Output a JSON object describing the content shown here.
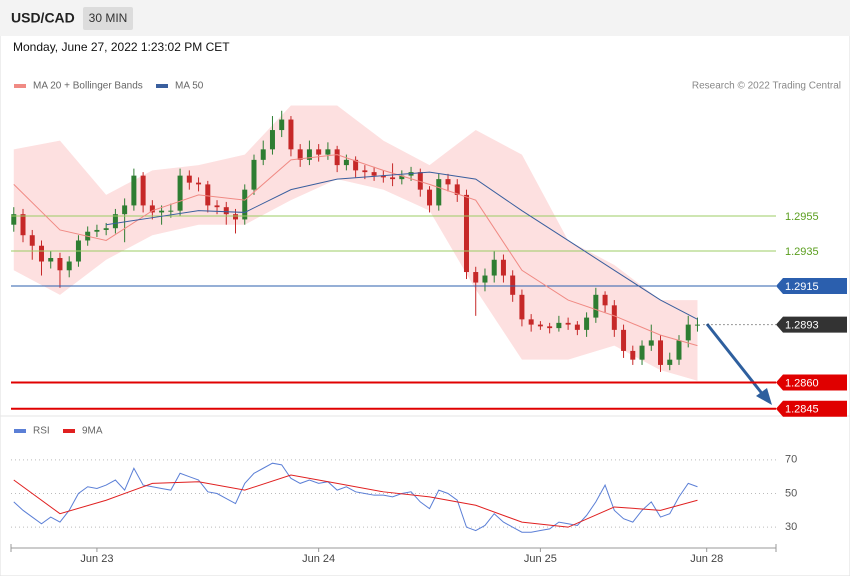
{
  "header": {
    "symbol": "USD/CAD",
    "timeframe": "30 MIN",
    "timestamp": "Monday, June 27, 2022 1:23:02 PM CET",
    "credit": "Research © 2022 Trading Central"
  },
  "chart_data": [
    {
      "type": "candlestick",
      "up_color": "#2e7d32",
      "down_color": "#c62828",
      "x": [
        0,
        1,
        2,
        3,
        4,
        5,
        6,
        7,
        8,
        9,
        10,
        11,
        12,
        13,
        14,
        15,
        16,
        17,
        18,
        19,
        20,
        21,
        22,
        23,
        24,
        25,
        26,
        27,
        28,
        29,
        30,
        31,
        32,
        33,
        34,
        35,
        36,
        37,
        38,
        39,
        40,
        41,
        42,
        43,
        44,
        45,
        46,
        47,
        48,
        49,
        50,
        51,
        52,
        53,
        54,
        55,
        56,
        57,
        58,
        59,
        60,
        61,
        62,
        63,
        64,
        65,
        66,
        67,
        68,
        69,
        70,
        71,
        72,
        73,
        74
      ],
      "open": [
        1.295,
        1.2956,
        1.2944,
        1.2938,
        1.2929,
        1.2931,
        1.2924,
        1.2929,
        1.2941,
        1.2946,
        1.2947,
        1.2948,
        1.2956,
        1.2961,
        1.2978,
        1.2961,
        1.2957,
        1.2958,
        1.2958,
        1.2978,
        1.2974,
        1.2973,
        1.2961,
        1.296,
        1.2956,
        1.2953,
        1.297,
        1.2987,
        1.2993,
        1.3004,
        1.301,
        1.2993,
        1.2987,
        1.2993,
        1.299,
        1.2993,
        1.2984,
        1.2987,
        1.2981,
        1.298,
        1.2978,
        1.2977,
        1.2976,
        1.2978,
        1.298,
        1.297,
        1.2961,
        1.2976,
        1.2973,
        1.2967,
        1.2923,
        1.2917,
        1.2921,
        1.293,
        1.2921,
        1.291,
        1.2896,
        1.2893,
        1.2892,
        1.2891,
        1.2894,
        1.2893,
        1.289,
        1.2897,
        1.291,
        1.2904,
        1.289,
        1.2878,
        1.2873,
        1.2881,
        1.2884,
        1.287,
        1.2873,
        1.2884,
        1.2893
      ],
      "high": [
        1.296,
        1.2959,
        1.2947,
        1.2941,
        1.2935,
        1.2934,
        1.2932,
        1.2944,
        1.2949,
        1.295,
        1.2951,
        1.2959,
        1.2965,
        1.2982,
        1.298,
        1.2964,
        1.2961,
        1.2962,
        1.2982,
        1.2981,
        1.2977,
        1.2975,
        1.2964,
        1.2963,
        1.2959,
        1.2973,
        1.299,
        1.2998,
        1.3012,
        1.3015,
        1.3012,
        1.2996,
        1.2998,
        1.2996,
        1.2997,
        1.2995,
        1.299,
        1.2989,
        1.2984,
        1.2983,
        1.2981,
        1.2985,
        1.2981,
        1.2983,
        1.2982,
        1.2972,
        1.2979,
        1.2979,
        1.2976,
        1.297,
        1.2926,
        1.2925,
        1.2935,
        1.2933,
        1.2924,
        1.2913,
        1.2899,
        1.2895,
        1.2894,
        1.2898,
        1.2897,
        1.2895,
        1.29,
        1.2914,
        1.2912,
        1.2907,
        1.2893,
        1.2881,
        1.2884,
        1.2893,
        1.2887,
        1.2877,
        1.2887,
        1.2898,
        1.2897
      ],
      "low": [
        1.2946,
        1.294,
        1.293,
        1.2921,
        1.2925,
        1.2914,
        1.292,
        1.2926,
        1.2938,
        1.2943,
        1.2944,
        1.2945,
        1.294,
        1.2958,
        1.2957,
        1.2953,
        1.295,
        1.2954,
        1.2955,
        1.297,
        1.2969,
        1.2957,
        1.2956,
        1.295,
        1.2945,
        1.295,
        1.2967,
        1.2984,
        1.299,
        1.3,
        1.2989,
        1.2983,
        1.2984,
        1.2986,
        1.2987,
        1.298,
        1.2981,
        1.2977,
        1.2976,
        1.2975,
        1.2974,
        1.2972,
        1.2973,
        1.2975,
        1.2966,
        1.2957,
        1.2958,
        1.2969,
        1.2963,
        1.2919,
        1.2898,
        1.2912,
        1.2917,
        1.2917,
        1.2906,
        1.2892,
        1.2889,
        1.289,
        1.2888,
        1.2889,
        1.289,
        1.2887,
        1.2886,
        1.2894,
        1.29,
        1.2886,
        1.2874,
        1.287,
        1.287,
        1.2878,
        1.2866,
        1.2867,
        1.287,
        1.288,
        1.2889
      ],
      "close": [
        1.2956,
        1.2944,
        1.2938,
        1.2929,
        1.2931,
        1.2924,
        1.2929,
        1.2941,
        1.2946,
        1.2947,
        1.2948,
        1.2956,
        1.2961,
        1.2978,
        1.2961,
        1.2957,
        1.2958,
        1.2958,
        1.2978,
        1.2974,
        1.2973,
        1.2961,
        1.296,
        1.2956,
        1.2953,
        1.297,
        1.2987,
        1.2993,
        1.3004,
        1.301,
        1.2993,
        1.2987,
        1.2993,
        1.299,
        1.2993,
        1.2984,
        1.2987,
        1.2981,
        1.298,
        1.2978,
        1.2977,
        1.2976,
        1.2978,
        1.298,
        1.297,
        1.2961,
        1.2976,
        1.2973,
        1.2967,
        1.2923,
        1.2917,
        1.2921,
        1.293,
        1.2921,
        1.291,
        1.2896,
        1.2893,
        1.2892,
        1.2891,
        1.2894,
        1.2893,
        1.289,
        1.2897,
        1.291,
        1.2904,
        1.289,
        1.2878,
        1.2873,
        1.2881,
        1.2884,
        1.287,
        1.2873,
        1.2884,
        1.2893,
        1.2893
      ],
      "series": [
        {
          "name": "MA 20 + Bollinger Bands",
          "color": "#f08a84",
          "band_color": "#fde0e0",
          "x": [
            0,
            5,
            10,
            15,
            20,
            25,
            30,
            35,
            40,
            45,
            50,
            55,
            60,
            65,
            70,
            74
          ],
          "values": [
            1.2973,
            1.2947,
            1.2941,
            1.2958,
            1.2967,
            1.2964,
            1.2987,
            1.299,
            1.2981,
            1.2973,
            1.2964,
            1.2924,
            1.2907,
            1.2898,
            1.2887,
            1.2881
          ],
          "upper": [
            1.2993,
            1.2998,
            1.2967,
            1.2981,
            1.2984,
            1.299,
            1.3018,
            1.3018,
            1.2998,
            1.2984,
            1.3004,
            1.299,
            1.2941,
            1.2927,
            1.2907,
            1.2907
          ],
          "lower": [
            1.2924,
            1.291,
            1.293,
            1.2944,
            1.295,
            1.295,
            1.2964,
            1.2976,
            1.297,
            1.2958,
            1.2913,
            1.2873,
            1.2873,
            1.2881,
            1.2867,
            1.2861
          ]
        },
        {
          "name": "MA 50",
          "color": "#3a5f9e",
          "x": [
            0,
            5,
            10,
            15,
            20,
            25,
            30,
            35,
            40,
            45,
            50,
            55,
            60,
            65,
            70,
            74
          ],
          "values": [
            null,
            null,
            1.295,
            1.2954,
            1.2958,
            1.2957,
            1.297,
            1.2976,
            1.2978,
            1.298,
            1.2976,
            1.2958,
            1.2941,
            1.2924,
            1.2907,
            1.2896
          ]
        }
      ],
      "levels": [
        {
          "value": 1.2955,
          "color": "#9ccc65",
          "text_color": "#5a9e1e",
          "box": false,
          "line": "solid"
        },
        {
          "value": 1.2935,
          "color": "#9ccc65",
          "text_color": "#5a9e1e",
          "box": false,
          "line": "solid"
        },
        {
          "value": 1.2915,
          "color": "#2b5fae",
          "text_color": "#ffffff",
          "box": true,
          "line": "solid"
        },
        {
          "value": 1.2893,
          "color": "#333333",
          "text_color": "#ffffff",
          "box": true,
          "line": "dotted"
        },
        {
          "value": 1.286,
          "label": "1.2860",
          "color": "#e00000",
          "text_color": "#ffffff",
          "box": true,
          "line": "thick"
        },
        {
          "value": 1.2845,
          "color": "#e00000",
          "text_color": "#ffffff",
          "box": true,
          "line": "thick"
        }
      ],
      "xlim": [
        -0.3,
        82.5
      ],
      "ylim": [
        1.2842,
        1.3024
      ]
    },
    {
      "type": "line",
      "xlim": [
        -0.3,
        82.5
      ],
      "ylim": [
        20,
        80
      ],
      "yticks": [
        30,
        50,
        70
      ],
      "grid": true,
      "xticks": [
        {
          "value": 9,
          "label": "Jun 23"
        },
        {
          "value": 33,
          "label": "Jun 24"
        },
        {
          "value": 57,
          "label": "Jun 25"
        },
        {
          "value": 75,
          "label": "Jun 28"
        }
      ],
      "series": [
        {
          "name": "RSI",
          "color": "#5b7fd6",
          "x": [
            0,
            1,
            2,
            3,
            4,
            5,
            6,
            7,
            8,
            9,
            10,
            11,
            12,
            13,
            14,
            15,
            16,
            17,
            18,
            19,
            20,
            21,
            22,
            23,
            24,
            25,
            26,
            27,
            28,
            29,
            30,
            31,
            32,
            33,
            34,
            35,
            36,
            37,
            38,
            39,
            40,
            41,
            42,
            43,
            44,
            45,
            46,
            47,
            48,
            49,
            50,
            51,
            52,
            53,
            54,
            55,
            56,
            57,
            58,
            59,
            60,
            61,
            62,
            63,
            64,
            65,
            66,
            67,
            68,
            69,
            70,
            71,
            72,
            73,
            74
          ],
          "values": [
            45,
            40,
            36,
            32,
            36,
            33,
            40,
            50,
            54,
            53,
            55,
            58,
            52,
            65,
            55,
            54,
            53,
            52,
            62,
            60,
            58,
            51,
            50,
            47,
            44,
            56,
            62,
            65,
            68,
            67,
            59,
            56,
            58,
            56,
            57,
            52,
            54,
            51,
            50,
            49,
            49,
            48,
            50,
            51,
            45,
            41,
            52,
            50,
            46,
            30,
            28,
            31,
            38,
            33,
            30,
            27,
            27,
            28,
            29,
            33,
            32,
            31,
            37,
            45,
            55,
            40,
            35,
            33,
            40,
            45,
            36,
            38,
            48,
            56,
            54
          ]
        },
        {
          "name": "9MA",
          "color": "#e02020",
          "x": [
            0,
            5,
            10,
            15,
            20,
            25,
            30,
            35,
            40,
            45,
            50,
            55,
            60,
            65,
            70,
            74
          ],
          "values": [
            58,
            38,
            46,
            56,
            57,
            52,
            61,
            56,
            51,
            48,
            43,
            33,
            30,
            42,
            40,
            46
          ]
        }
      ]
    }
  ]
}
